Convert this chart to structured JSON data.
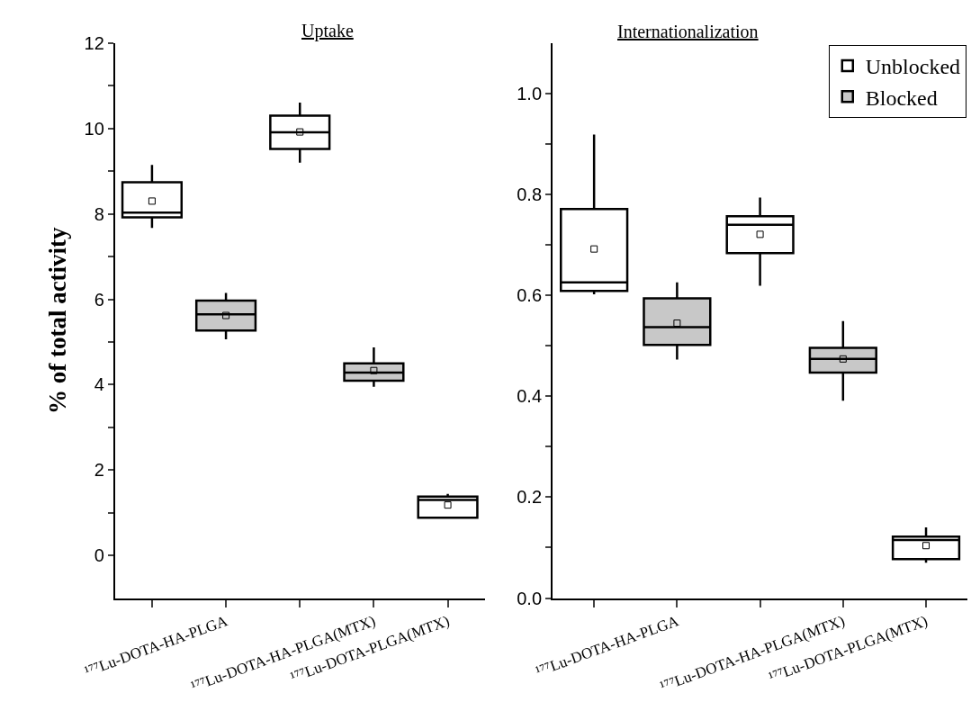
{
  "chart_data": [
    {
      "type": "box",
      "title": "Uptake",
      "ylabel": "% of total activity",
      "categories": [
        null,
        "¹⁷⁷Lu-DOTA-HA-PLGA",
        null,
        "¹⁷⁷Lu-DOTA-HA-PLGA(MTX)",
        "¹⁷⁷Lu-DOTA-PLGA(MTX)"
      ],
      "ylim": [
        -1,
        12
      ],
      "yticks": [
        0,
        {
          "value": 1,
          "label": null
        },
        2,
        {
          "value": 3,
          "label": null
        },
        4,
        {
          "value": 5,
          "label": null
        },
        6,
        {
          "value": 7,
          "label": null
        },
        8,
        {
          "value": 9,
          "label": null
        },
        10,
        {
          "value": 11,
          "label": null
        },
        12
      ],
      "legend": false,
      "series": [
        {
          "color": "#ffffff",
          "boxes": [
            {
              "low": 7.67,
              "q1": 7.92,
              "median": 8.03,
              "q3": 8.74,
              "high": 9.15,
              "mean": 8.3
            },
            null,
            {
              "low": 9.2,
              "q1": 9.52,
              "median": 9.91,
              "q3": 10.3,
              "high": 10.61,
              "mean": 9.92
            },
            null,
            {
              "low": 0.88,
              "q1": 0.88,
              "median": 1.3,
              "q3": 1.38,
              "high": 1.44,
              "mean": 1.18
            }
          ]
        },
        {
          "color": "#c8c8c8",
          "boxes": [
            null,
            {
              "low": 5.06,
              "q1": 5.27,
              "median": 5.65,
              "q3": 5.97,
              "high": 6.15,
              "mean": 5.62
            },
            null,
            {
              "low": 3.95,
              "q1": 4.09,
              "median": 4.28,
              "q3": 4.5,
              "high": 4.87,
              "mean": 4.33
            },
            null
          ]
        }
      ]
    },
    {
      "type": "box",
      "title": "Internationalization",
      "categories": [
        null,
        "¹⁷⁷Lu-DOTA-HA-PLGA",
        null,
        "¹⁷⁷Lu-DOTA-HA-PLGA(MTX)",
        "¹⁷⁷Lu-DOTA-PLGA(MTX)"
      ],
      "ylim": [
        0,
        1.1
      ],
      "yticks": [
        {
          "value": 0,
          "label": "0.0"
        },
        {
          "value": 0.1,
          "label": null
        },
        0.2,
        {
          "value": 0.3,
          "label": null
        },
        0.4,
        {
          "value": 0.5,
          "label": null
        },
        0.6,
        {
          "value": 0.7,
          "label": null
        },
        0.8,
        {
          "value": 0.9,
          "label": null
        },
        {
          "value": 1.0,
          "label": "1.0"
        }
      ],
      "legend": "top right",
      "series": [
        {
          "name": "Unblocked",
          "color": "#ffffff",
          "boxes": [
            {
              "low": 0.602,
              "q1": 0.609,
              "median": 0.626,
              "q3": 0.771,
              "high": 0.919,
              "mean": 0.692
            },
            null,
            {
              "low": 0.619,
              "q1": 0.684,
              "median": 0.74,
              "q3": 0.757,
              "high": 0.794,
              "mean": 0.721
            },
            null,
            {
              "low": 0.07,
              "q1": 0.077,
              "median": 0.115,
              "q3": 0.122,
              "high": 0.14,
              "mean": 0.104
            }
          ]
        },
        {
          "name": "Blocked",
          "color": "#c8c8c8",
          "boxes": [
            null,
            {
              "low": 0.473,
              "q1": 0.502,
              "median": 0.537,
              "q3": 0.594,
              "high": 0.626,
              "mean": 0.545
            },
            null,
            {
              "low": 0.391,
              "q1": 0.447,
              "median": 0.474,
              "q3": 0.496,
              "high": 0.549,
              "mean": 0.474
            },
            null
          ]
        }
      ]
    }
  ]
}
